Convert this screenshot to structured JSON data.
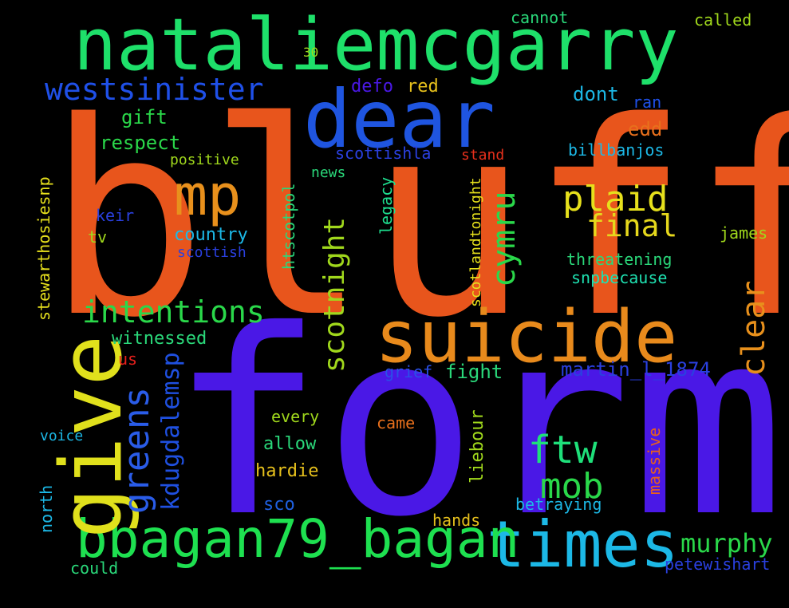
{
  "words": [
    {
      "text": "bluff",
      "color": "#e8551c"
    },
    {
      "text": "form",
      "color": "#4a18e6"
    },
    {
      "text": "nataliemcgarry",
      "color": "#1ee06a"
    },
    {
      "text": "dear",
      "color": "#1f55e0"
    },
    {
      "text": "suicide",
      "color": "#e88a1c"
    },
    {
      "text": "times",
      "color": "#1cb8e6"
    },
    {
      "text": "bbagan79_bagan",
      "color": "#1ee050"
    },
    {
      "text": "give",
      "color": "#e0e01c"
    },
    {
      "text": "mp",
      "color": "#e8901c"
    },
    {
      "text": "westsinister",
      "color": "#1f50e8"
    },
    {
      "text": "intentions",
      "color": "#2ad84a"
    },
    {
      "text": "plaid",
      "color": "#e6e01c"
    },
    {
      "text": "final",
      "color": "#e6d81c"
    },
    {
      "text": "greens",
      "color": "#2a5ce8"
    },
    {
      "text": "kdugdalemsp",
      "color": "#1f50e0"
    },
    {
      "text": "scotnight",
      "color": "#a0d81c"
    },
    {
      "text": "cymru",
      "color": "#2ad84a"
    },
    {
      "text": "clear",
      "color": "#e8901c"
    },
    {
      "text": "ftw",
      "color": "#1ee07a"
    },
    {
      "text": "mob",
      "color": "#2ad84a"
    },
    {
      "text": "murphy",
      "color": "#2ad84a"
    },
    {
      "text": "martin_l_1874",
      "color": "#2a40e0"
    },
    {
      "text": "fight",
      "color": "#2ad87a"
    },
    {
      "text": "cannot",
      "color": "#2ad87a"
    },
    {
      "text": "called",
      "color": "#a0d81c"
    },
    {
      "text": "30",
      "color": "#a0d81c"
    },
    {
      "text": "defo",
      "color": "#4a18e6"
    },
    {
      "text": "red",
      "color": "#e6c01c"
    },
    {
      "text": "dont",
      "color": "#1cb8e6"
    },
    {
      "text": "ran",
      "color": "#1f50e8"
    },
    {
      "text": "gift",
      "color": "#2ad84a"
    },
    {
      "text": "respect",
      "color": "#2ad84a"
    },
    {
      "text": "edd",
      "color": "#e8701c"
    },
    {
      "text": "billbanjos",
      "color": "#1cb8e6"
    },
    {
      "text": "scottishla",
      "color": "#2a40e0"
    },
    {
      "text": "stand",
      "color": "#e8301c"
    },
    {
      "text": "positive",
      "color": "#a0d81c"
    },
    {
      "text": "news",
      "color": "#2ad87a"
    },
    {
      "text": "stewarthosiesnp",
      "color": "#e6e01c"
    },
    {
      "text": "htscotpol",
      "color": "#2ad87a"
    },
    {
      "text": "legacy",
      "color": "#1ee090"
    },
    {
      "text": "scotlandtonight",
      "color": "#e6e01c"
    },
    {
      "text": "keir",
      "color": "#2a40e0"
    },
    {
      "text": "tv",
      "color": "#a0d81c"
    },
    {
      "text": "country",
      "color": "#1cb8e6"
    },
    {
      "text": "scottish",
      "color": "#2a40e0"
    },
    {
      "text": "james",
      "color": "#a0d81c"
    },
    {
      "text": "threatening",
      "color": "#2ad87a"
    },
    {
      "text": "snpbecause",
      "color": "#1ee0b0"
    },
    {
      "text": "witnessed",
      "color": "#2ad87a"
    },
    {
      "text": "us",
      "color": "#e8201c"
    },
    {
      "text": "grief",
      "color": "#2a50e8"
    },
    {
      "text": "every",
      "color": "#a0d81c"
    },
    {
      "text": "came",
      "color": "#e8701c"
    },
    {
      "text": "allow",
      "color": "#2ad87a"
    },
    {
      "text": "liebour",
      "color": "#a0d81c"
    },
    {
      "text": "massive",
      "color": "#e8601c"
    },
    {
      "text": "voice",
      "color": "#1cb8e6"
    },
    {
      "text": "hardie",
      "color": "#e6c01c"
    },
    {
      "text": "sco",
      "color": "#1f60e0"
    },
    {
      "text": "betraying",
      "color": "#1cb8e6"
    },
    {
      "text": "north",
      "color": "#1cb8e6"
    },
    {
      "text": "hands",
      "color": "#e6c01c"
    },
    {
      "text": "could",
      "color": "#2ad87a"
    },
    {
      "text": "petewishart",
      "color": "#2a40e0"
    }
  ]
}
